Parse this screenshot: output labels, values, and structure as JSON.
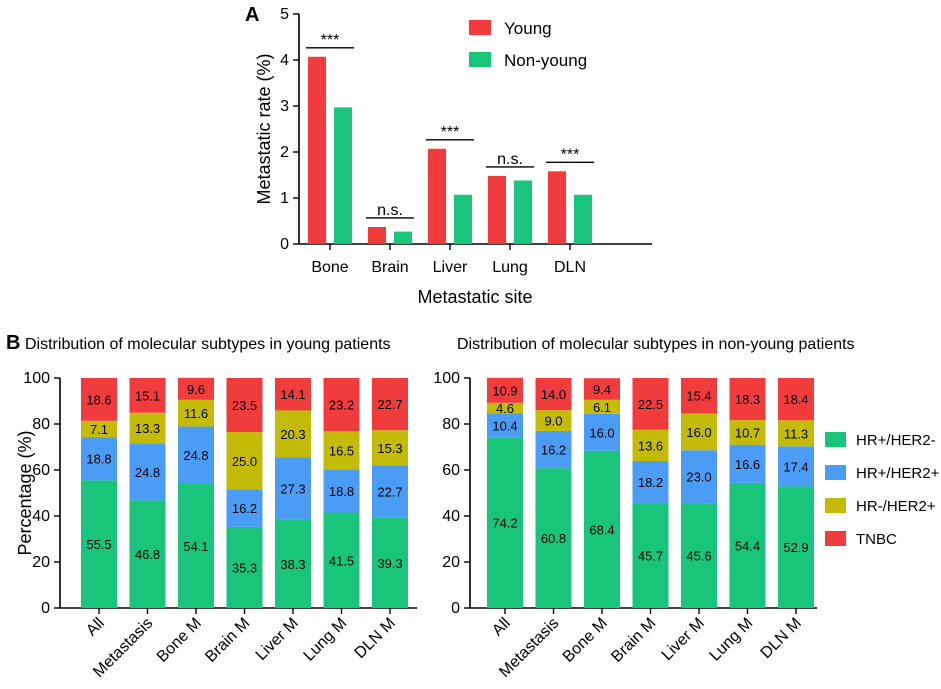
{
  "chart_data": [
    {
      "panel": "A",
      "type": "bar",
      "xlabel": "Metastatic site",
      "ylabel": "Metastatic rate (%)",
      "ylim": [
        0,
        5
      ],
      "yticks": [
        0,
        1,
        2,
        3,
        4,
        5
      ],
      "categories": [
        "Bone",
        "Brain",
        "Liver",
        "Lung",
        "DLN"
      ],
      "series": [
        {
          "name": "Young",
          "color": "#f03c3c",
          "values": [
            4.07,
            0.37,
            2.07,
            1.48,
            1.58
          ]
        },
        {
          "name": "Non-young",
          "color": "#19c47b",
          "values": [
            2.97,
            0.27,
            1.07,
            1.38,
            1.07
          ]
        }
      ],
      "significance": [
        "***",
        "n.s.",
        "***",
        "n.s.",
        "***"
      ],
      "legend_position": "top-right"
    },
    {
      "panel": "B",
      "type": "bar",
      "stacked": true,
      "title": "Distribution of molecular subtypes in young patients",
      "ylabel": "Percentage (%)",
      "ylim": [
        0,
        100
      ],
      "yticks": [
        0,
        20,
        40,
        60,
        80,
        100
      ],
      "categories": [
        "All",
        "Metastasis",
        "Bone M",
        "Brain M",
        "Liver M",
        "Lung M",
        "DLN M"
      ],
      "series": [
        {
          "name": "HR+/HER2-",
          "color": "#19c47b",
          "values": [
            55.5,
            46.8,
            54.1,
            35.3,
            38.3,
            41.5,
            39.3
          ]
        },
        {
          "name": "HR+/HER2+",
          "color": "#4b9cf5",
          "values": [
            18.8,
            24.8,
            24.8,
            16.2,
            27.3,
            18.8,
            22.7
          ]
        },
        {
          "name": "HR-/HER2+",
          "color": "#c4bb08",
          "values": [
            7.1,
            13.3,
            11.6,
            25.0,
            20.3,
            16.5,
            15.3
          ]
        },
        {
          "name": "TNBC",
          "color": "#f03c3c",
          "values": [
            18.6,
            15.1,
            9.6,
            23.5,
            14.1,
            23.2,
            22.7
          ]
        }
      ],
      "labels": [
        [
          "55.5",
          "46.8",
          "54.1",
          "35.3",
          "38.3",
          "41.5",
          "39.3"
        ],
        [
          "18.8",
          "24.8",
          "24.8",
          "16.2",
          "27.3",
          "18.8",
          "22.7"
        ],
        [
          "7.1",
          "13.3",
          "11.6",
          "25.0",
          "20.3",
          "16.5",
          "15.3"
        ],
        [
          "18.6",
          "15.1",
          "9.6",
          "23.5",
          "14.1",
          "23.2",
          "22.7"
        ]
      ]
    },
    {
      "panel": "B",
      "type": "bar",
      "stacked": true,
      "title": "Distribution of molecular subtypes in non-young patients",
      "ylabel": "",
      "ylim": [
        0,
        100
      ],
      "yticks": [
        0,
        20,
        40,
        60,
        80,
        100
      ],
      "categories": [
        "All",
        "Metastasis",
        "Bone M",
        "Brain M",
        "Liver M",
        "Lung M",
        "DLN M"
      ],
      "series": [
        {
          "name": "HR+/HER2-",
          "color": "#19c47b",
          "values": [
            74.2,
            60.8,
            68.4,
            45.7,
            45.6,
            54.4,
            52.9
          ]
        },
        {
          "name": "HR+/HER2+",
          "color": "#4b9cf5",
          "values": [
            10.4,
            16.2,
            16.0,
            18.2,
            23.0,
            16.6,
            17.4
          ]
        },
        {
          "name": "HR-/HER2+",
          "color": "#c4bb08",
          "values": [
            4.6,
            9.0,
            6.1,
            13.6,
            16.0,
            10.7,
            11.3
          ]
        },
        {
          "name": "TNBC",
          "color": "#f03c3c",
          "values": [
            10.9,
            14.0,
            9.4,
            22.5,
            15.4,
            18.3,
            18.4
          ]
        }
      ],
      "labels": [
        [
          "74.2",
          "60.8",
          "68.4",
          "45.7",
          "45.6",
          "54.4",
          "52.9"
        ],
        [
          "10.4",
          "16.2",
          "16.0",
          "18.2",
          "23.0",
          "16.6",
          "17.4"
        ],
        [
          "4.6",
          "9.0",
          "6.1",
          "13.6",
          "16.0",
          "10.7",
          "11.3"
        ],
        [
          "10.9",
          "14.0",
          "9.4",
          "22.5",
          "15.4",
          "18.3",
          "18.4"
        ]
      ],
      "legend_position": "right"
    }
  ]
}
